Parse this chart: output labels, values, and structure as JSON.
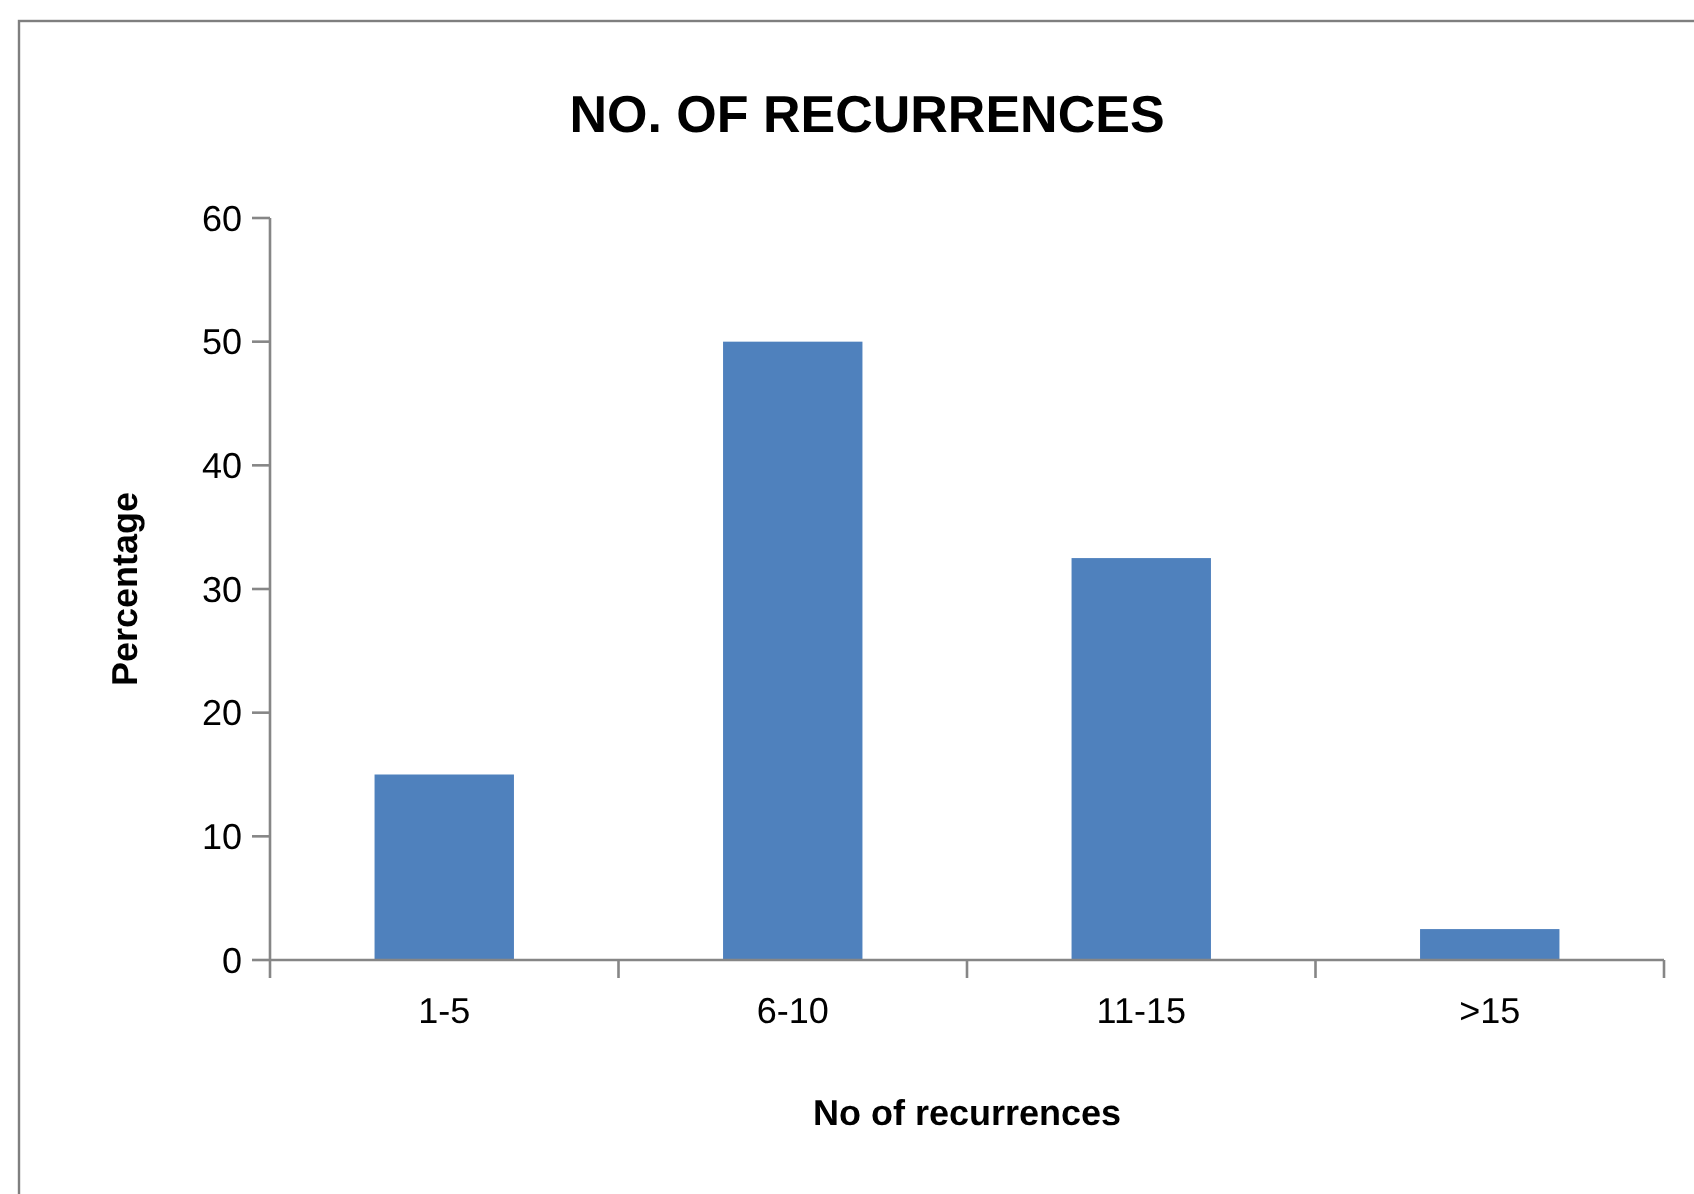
{
  "chart_data": {
    "type": "bar",
    "title": "NO. OF RECURRENCES",
    "xlabel": "No of recurrences",
    "ylabel": "Percentage",
    "categories": [
      "1-5",
      "6-10",
      "11-15",
      ">15"
    ],
    "values": [
      15,
      50,
      32.5,
      2.5
    ],
    "color": "#4f81bd",
    "ylim": [
      0,
      60
    ],
    "yticks": [
      0,
      10,
      20,
      30,
      40,
      50,
      60
    ]
  }
}
